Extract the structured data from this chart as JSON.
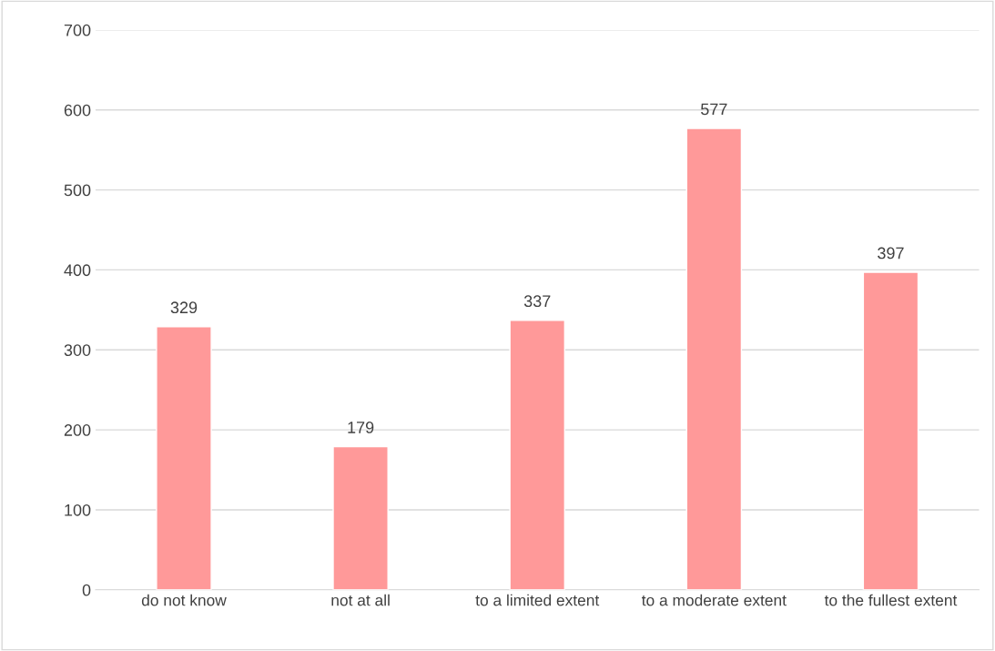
{
  "chart_data": {
    "type": "bar",
    "categories": [
      "do not know",
      "not at all",
      "to a limited extent",
      "to a moderate extent",
      "to the fullest extent"
    ],
    "values": [
      329,
      179,
      337,
      577,
      397
    ],
    "color": "#ff9999",
    "ylim": [
      0,
      700
    ],
    "yticks": [
      0,
      100,
      200,
      300,
      400,
      500,
      600,
      700
    ],
    "grid": "y",
    "data_labels": true
  }
}
